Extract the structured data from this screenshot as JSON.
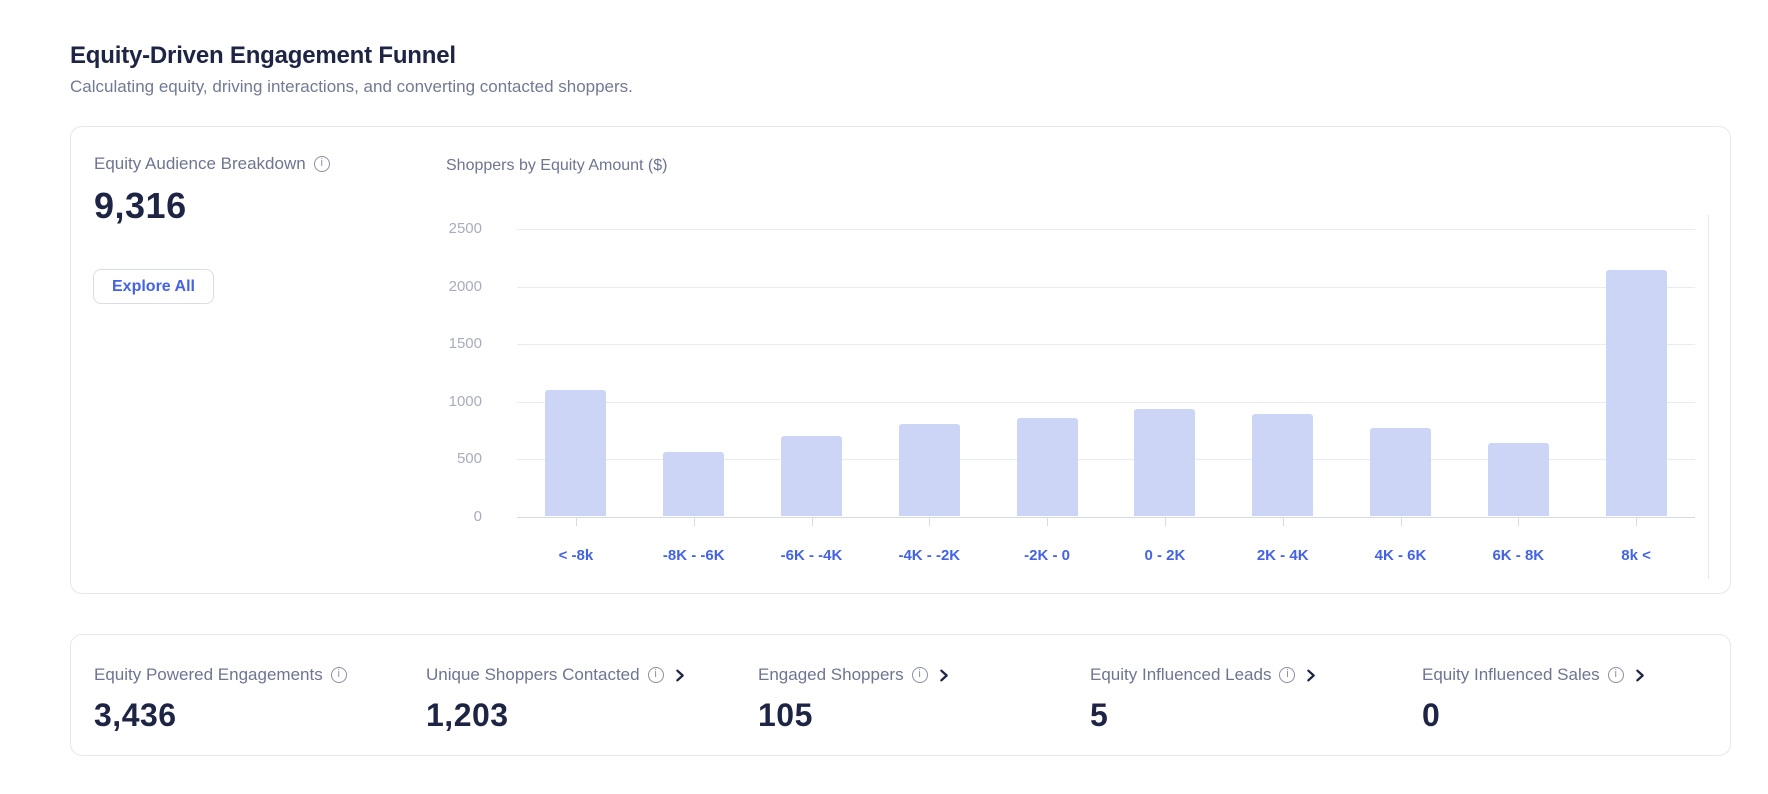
{
  "page": {
    "title": "Equity-Driven Engagement Funnel",
    "subtitle": "Calculating equity, driving interactions, and converting contacted shoppers."
  },
  "audience_card": {
    "label": "Equity Audience Breakdown",
    "value": "9,316",
    "explore_button": "Explore All"
  },
  "chart_data": {
    "type": "bar",
    "title": "Shoppers by Equity Amount ($)",
    "categories": [
      "< -8k",
      "-8K - -6K",
      "-6K - -4K",
      "-4K - -2K",
      "-2K - 0",
      "0 - 2K",
      "2K - 4K",
      "4K - 6K",
      "6K - 8K",
      "8k <"
    ],
    "values": [
      1095,
      555,
      695,
      800,
      855,
      930,
      885,
      765,
      635,
      2135
    ],
    "xlabel": "",
    "ylabel": "",
    "ylim": [
      0,
      2500
    ],
    "yticks": [
      0,
      500,
      1000,
      1500,
      2000,
      2500
    ],
    "grid": true,
    "legend": "none",
    "bar_color": "#cdd5f6"
  },
  "metrics": [
    {
      "label": "Equity Powered Engagements",
      "value": "3,436",
      "has_info": true,
      "has_chevron": false
    },
    {
      "label": "Unique Shoppers Contacted",
      "value": "1,203",
      "has_info": true,
      "has_chevron": true
    },
    {
      "label": "Engaged Shoppers",
      "value": "105",
      "has_info": true,
      "has_chevron": true
    },
    {
      "label": "Equity Influenced Leads",
      "value": "5",
      "has_info": true,
      "has_chevron": true
    },
    {
      "label": "Equity Influenced Sales",
      "value": "0",
      "has_info": true,
      "has_chevron": true
    }
  ],
  "colors": {
    "navy_text": "#1e2444",
    "muted_label": "#6d7590",
    "axis_tick": "#a8adbb",
    "accent_blue": "#4463e3",
    "bar_fill": "#cdd5f6",
    "card_border": "#e5e8ef"
  },
  "icons": {
    "info": "info-icon",
    "chevron_right": "chevron-right-icon"
  }
}
